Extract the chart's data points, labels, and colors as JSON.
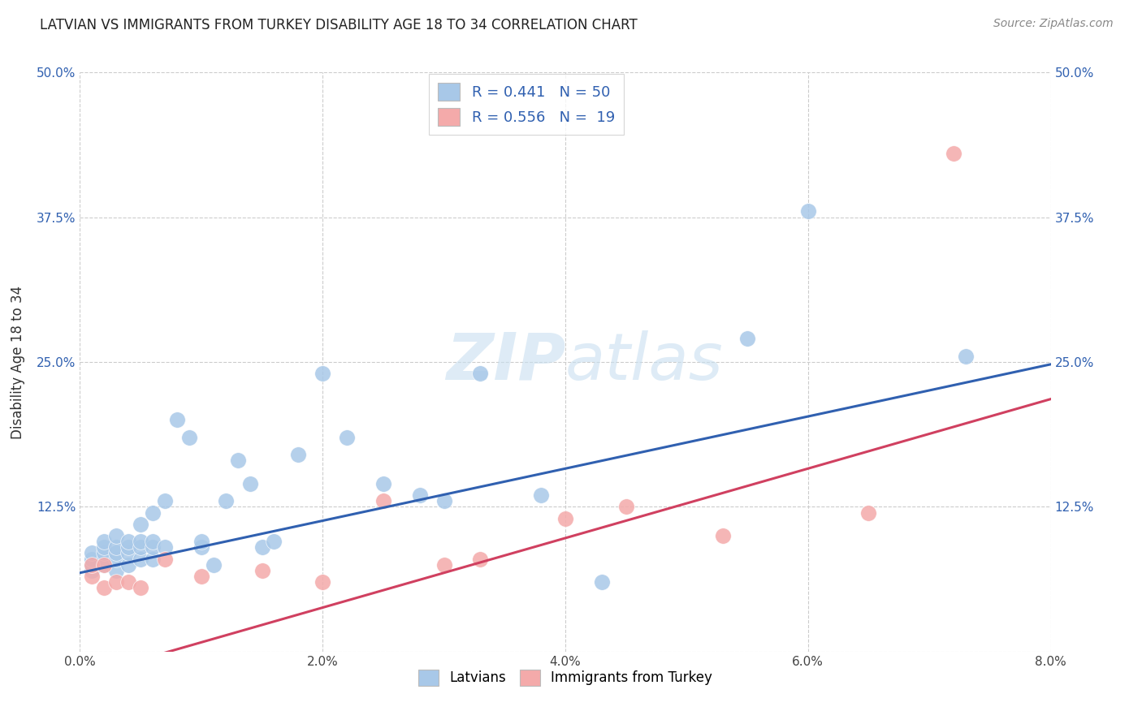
{
  "title": "LATVIAN VS IMMIGRANTS FROM TURKEY DISABILITY AGE 18 TO 34 CORRELATION CHART",
  "source": "Source: ZipAtlas.com",
  "ylabel": "Disability Age 18 to 34",
  "xlim": [
    0.0,
    0.08
  ],
  "ylim": [
    0.0,
    0.5
  ],
  "xticks": [
    0.0,
    0.02,
    0.04,
    0.06,
    0.08
  ],
  "xtick_labels": [
    "0.0%",
    "2.0%",
    "4.0%",
    "6.0%",
    "8.0%"
  ],
  "yticks": [
    0.0,
    0.125,
    0.25,
    0.375,
    0.5
  ],
  "ytick_labels": [
    "",
    "12.5%",
    "25.0%",
    "37.5%",
    "50.0%"
  ],
  "blue_R": 0.441,
  "blue_N": 50,
  "pink_R": 0.556,
  "pink_N": 19,
  "blue_color": "#a8c8e8",
  "pink_color": "#f4aaaa",
  "blue_line_color": "#3060b0",
  "pink_line_color": "#d04060",
  "watermark_color": "#c8dff0",
  "latvians_x": [
    0.001,
    0.001,
    0.001,
    0.001,
    0.002,
    0.002,
    0.002,
    0.002,
    0.002,
    0.003,
    0.003,
    0.003,
    0.003,
    0.003,
    0.004,
    0.004,
    0.004,
    0.004,
    0.005,
    0.005,
    0.005,
    0.005,
    0.006,
    0.006,
    0.006,
    0.006,
    0.007,
    0.007,
    0.008,
    0.009,
    0.01,
    0.01,
    0.011,
    0.012,
    0.013,
    0.014,
    0.015,
    0.016,
    0.018,
    0.02,
    0.022,
    0.025,
    0.028,
    0.03,
    0.033,
    0.038,
    0.043,
    0.055,
    0.06,
    0.073
  ],
  "latvians_y": [
    0.07,
    0.075,
    0.08,
    0.085,
    0.075,
    0.08,
    0.085,
    0.09,
    0.095,
    0.07,
    0.08,
    0.085,
    0.09,
    0.1,
    0.075,
    0.085,
    0.09,
    0.095,
    0.08,
    0.09,
    0.095,
    0.11,
    0.08,
    0.09,
    0.095,
    0.12,
    0.09,
    0.13,
    0.2,
    0.185,
    0.09,
    0.095,
    0.075,
    0.13,
    0.165,
    0.145,
    0.09,
    0.095,
    0.17,
    0.24,
    0.185,
    0.145,
    0.135,
    0.13,
    0.24,
    0.135,
    0.06,
    0.27,
    0.38,
    0.255
  ],
  "turkey_x": [
    0.001,
    0.001,
    0.002,
    0.002,
    0.003,
    0.004,
    0.005,
    0.007,
    0.01,
    0.015,
    0.02,
    0.025,
    0.03,
    0.033,
    0.04,
    0.045,
    0.053,
    0.065,
    0.072
  ],
  "turkey_y": [
    0.065,
    0.075,
    0.055,
    0.075,
    0.06,
    0.06,
    0.055,
    0.08,
    0.065,
    0.07,
    0.06,
    0.13,
    0.075,
    0.08,
    0.115,
    0.125,
    0.1,
    0.12,
    0.43
  ]
}
